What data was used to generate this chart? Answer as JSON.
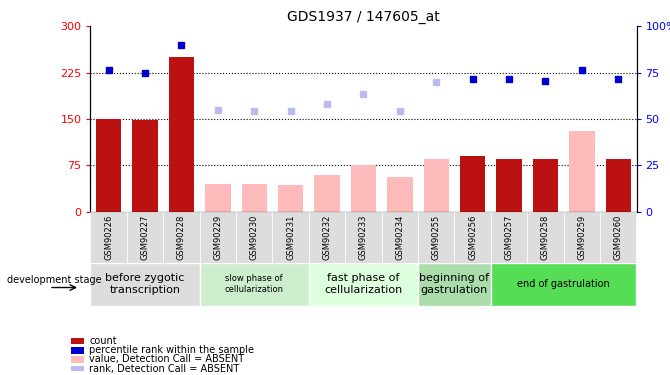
{
  "title": "GDS1937 / 147605_at",
  "samples": [
    "GSM90226",
    "GSM90227",
    "GSM90228",
    "GSM90229",
    "GSM90230",
    "GSM90231",
    "GSM90232",
    "GSM90233",
    "GSM90234",
    "GSM90255",
    "GSM90256",
    "GSM90257",
    "GSM90258",
    "GSM90259",
    "GSM90260"
  ],
  "bar_values": [
    150,
    148,
    250,
    45,
    45,
    44,
    60,
    75,
    57,
    85,
    90,
    85,
    85,
    130,
    85
  ],
  "bar_colors": [
    "dark",
    "dark",
    "dark",
    "light",
    "light",
    "light",
    "light",
    "light",
    "light",
    "light",
    "dark",
    "dark",
    "dark",
    "light",
    "dark"
  ],
  "rank_values": [
    230,
    225,
    270,
    null,
    null,
    null,
    null,
    null,
    null,
    null,
    215,
    215,
    212,
    230,
    215
  ],
  "absent_rank": [
    null,
    null,
    null,
    165,
    163,
    163,
    175,
    190,
    163,
    210,
    null,
    null,
    null,
    null,
    null
  ],
  "ylim_left": [
    0,
    300
  ],
  "ylim_right": [
    0,
    100
  ],
  "yticks_left": [
    0,
    75,
    150,
    225,
    300
  ],
  "yticks_right": [
    0,
    25,
    50,
    75,
    100
  ],
  "dotted_lines": [
    75,
    150,
    225
  ],
  "dark_bar_color": "#bb1111",
  "light_bar_color": "#ffbbbb",
  "dark_blue_color": "#0000cc",
  "light_blue_color": "#bbbbee",
  "stages": [
    {
      "label": "before zygotic\ntranscription",
      "start": 0,
      "end": 3,
      "color": "#dddddd",
      "fontsize": 8
    },
    {
      "label": "slow phase of\ncellularization",
      "start": 3,
      "end": 6,
      "color": "#cceecc",
      "fontsize": 6
    },
    {
      "label": "fast phase of\ncellularization",
      "start": 6,
      "end": 9,
      "color": "#ddffdd",
      "fontsize": 8
    },
    {
      "label": "beginning of\ngastrulation",
      "start": 9,
      "end": 11,
      "color": "#aaddaa",
      "fontsize": 8
    },
    {
      "label": "end of gastrulation",
      "start": 11,
      "end": 15,
      "color": "#55dd55",
      "fontsize": 7
    }
  ],
  "legend_items": [
    {
      "label": "count",
      "color": "#bb1111"
    },
    {
      "label": "percentile rank within the sample",
      "color": "#0000cc"
    },
    {
      "label": "value, Detection Call = ABSENT",
      "color": "#ffbbbb"
    },
    {
      "label": "rank, Detection Call = ABSENT",
      "color": "#bbbbee"
    }
  ],
  "dev_stage_label": "development stage"
}
